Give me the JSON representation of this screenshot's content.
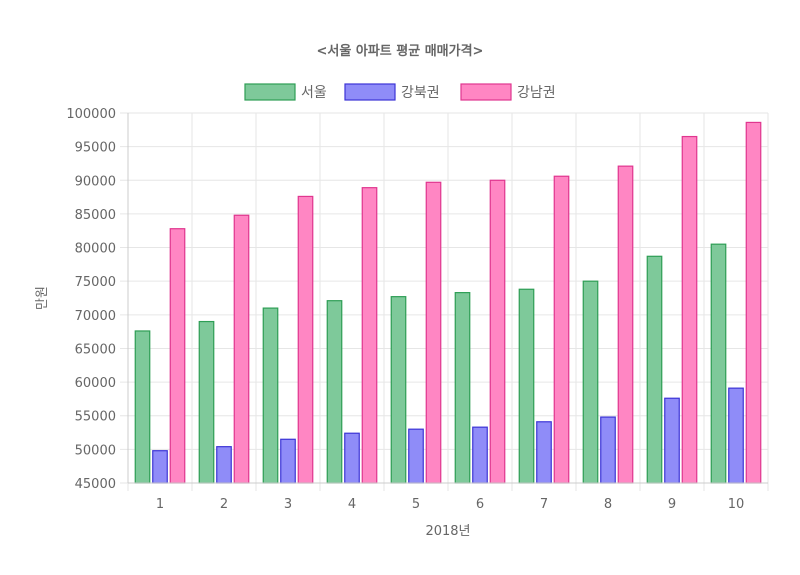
{
  "chart_data": {
    "type": "bar",
    "title": "<서울 아파트 평균 매매가격>",
    "xlabel": "2018년",
    "ylabel": "만원",
    "categories": [
      "1",
      "2",
      "3",
      "4",
      "5",
      "6",
      "7",
      "8",
      "9",
      "10"
    ],
    "ylim": [
      45000,
      100000
    ],
    "y_ticks": [
      "45000",
      "50000",
      "55000",
      "60000",
      "65000",
      "70000",
      "75000",
      "80000",
      "85000",
      "90000",
      "95000",
      "100000"
    ],
    "grid": true,
    "legend_position": "top",
    "series": [
      {
        "name": "서울",
        "fill": "#7ec99a",
        "stroke": "#2e9e55",
        "values": [
          67600,
          69000,
          71000,
          72100,
          72700,
          73300,
          73800,
          75000,
          78700,
          80500
        ]
      },
      {
        "name": "강북권",
        "fill": "#8f8cf8",
        "stroke": "#3c34d6",
        "values": [
          49800,
          50400,
          51500,
          52400,
          53000,
          53300,
          54100,
          54800,
          57600,
          59100
        ]
      },
      {
        "name": "강남권",
        "fill": "#ff86c3",
        "stroke": "#e0368f",
        "values": [
          82800,
          84800,
          87600,
          88900,
          89700,
          90000,
          90600,
          92100,
          96500,
          98600
        ]
      }
    ]
  }
}
